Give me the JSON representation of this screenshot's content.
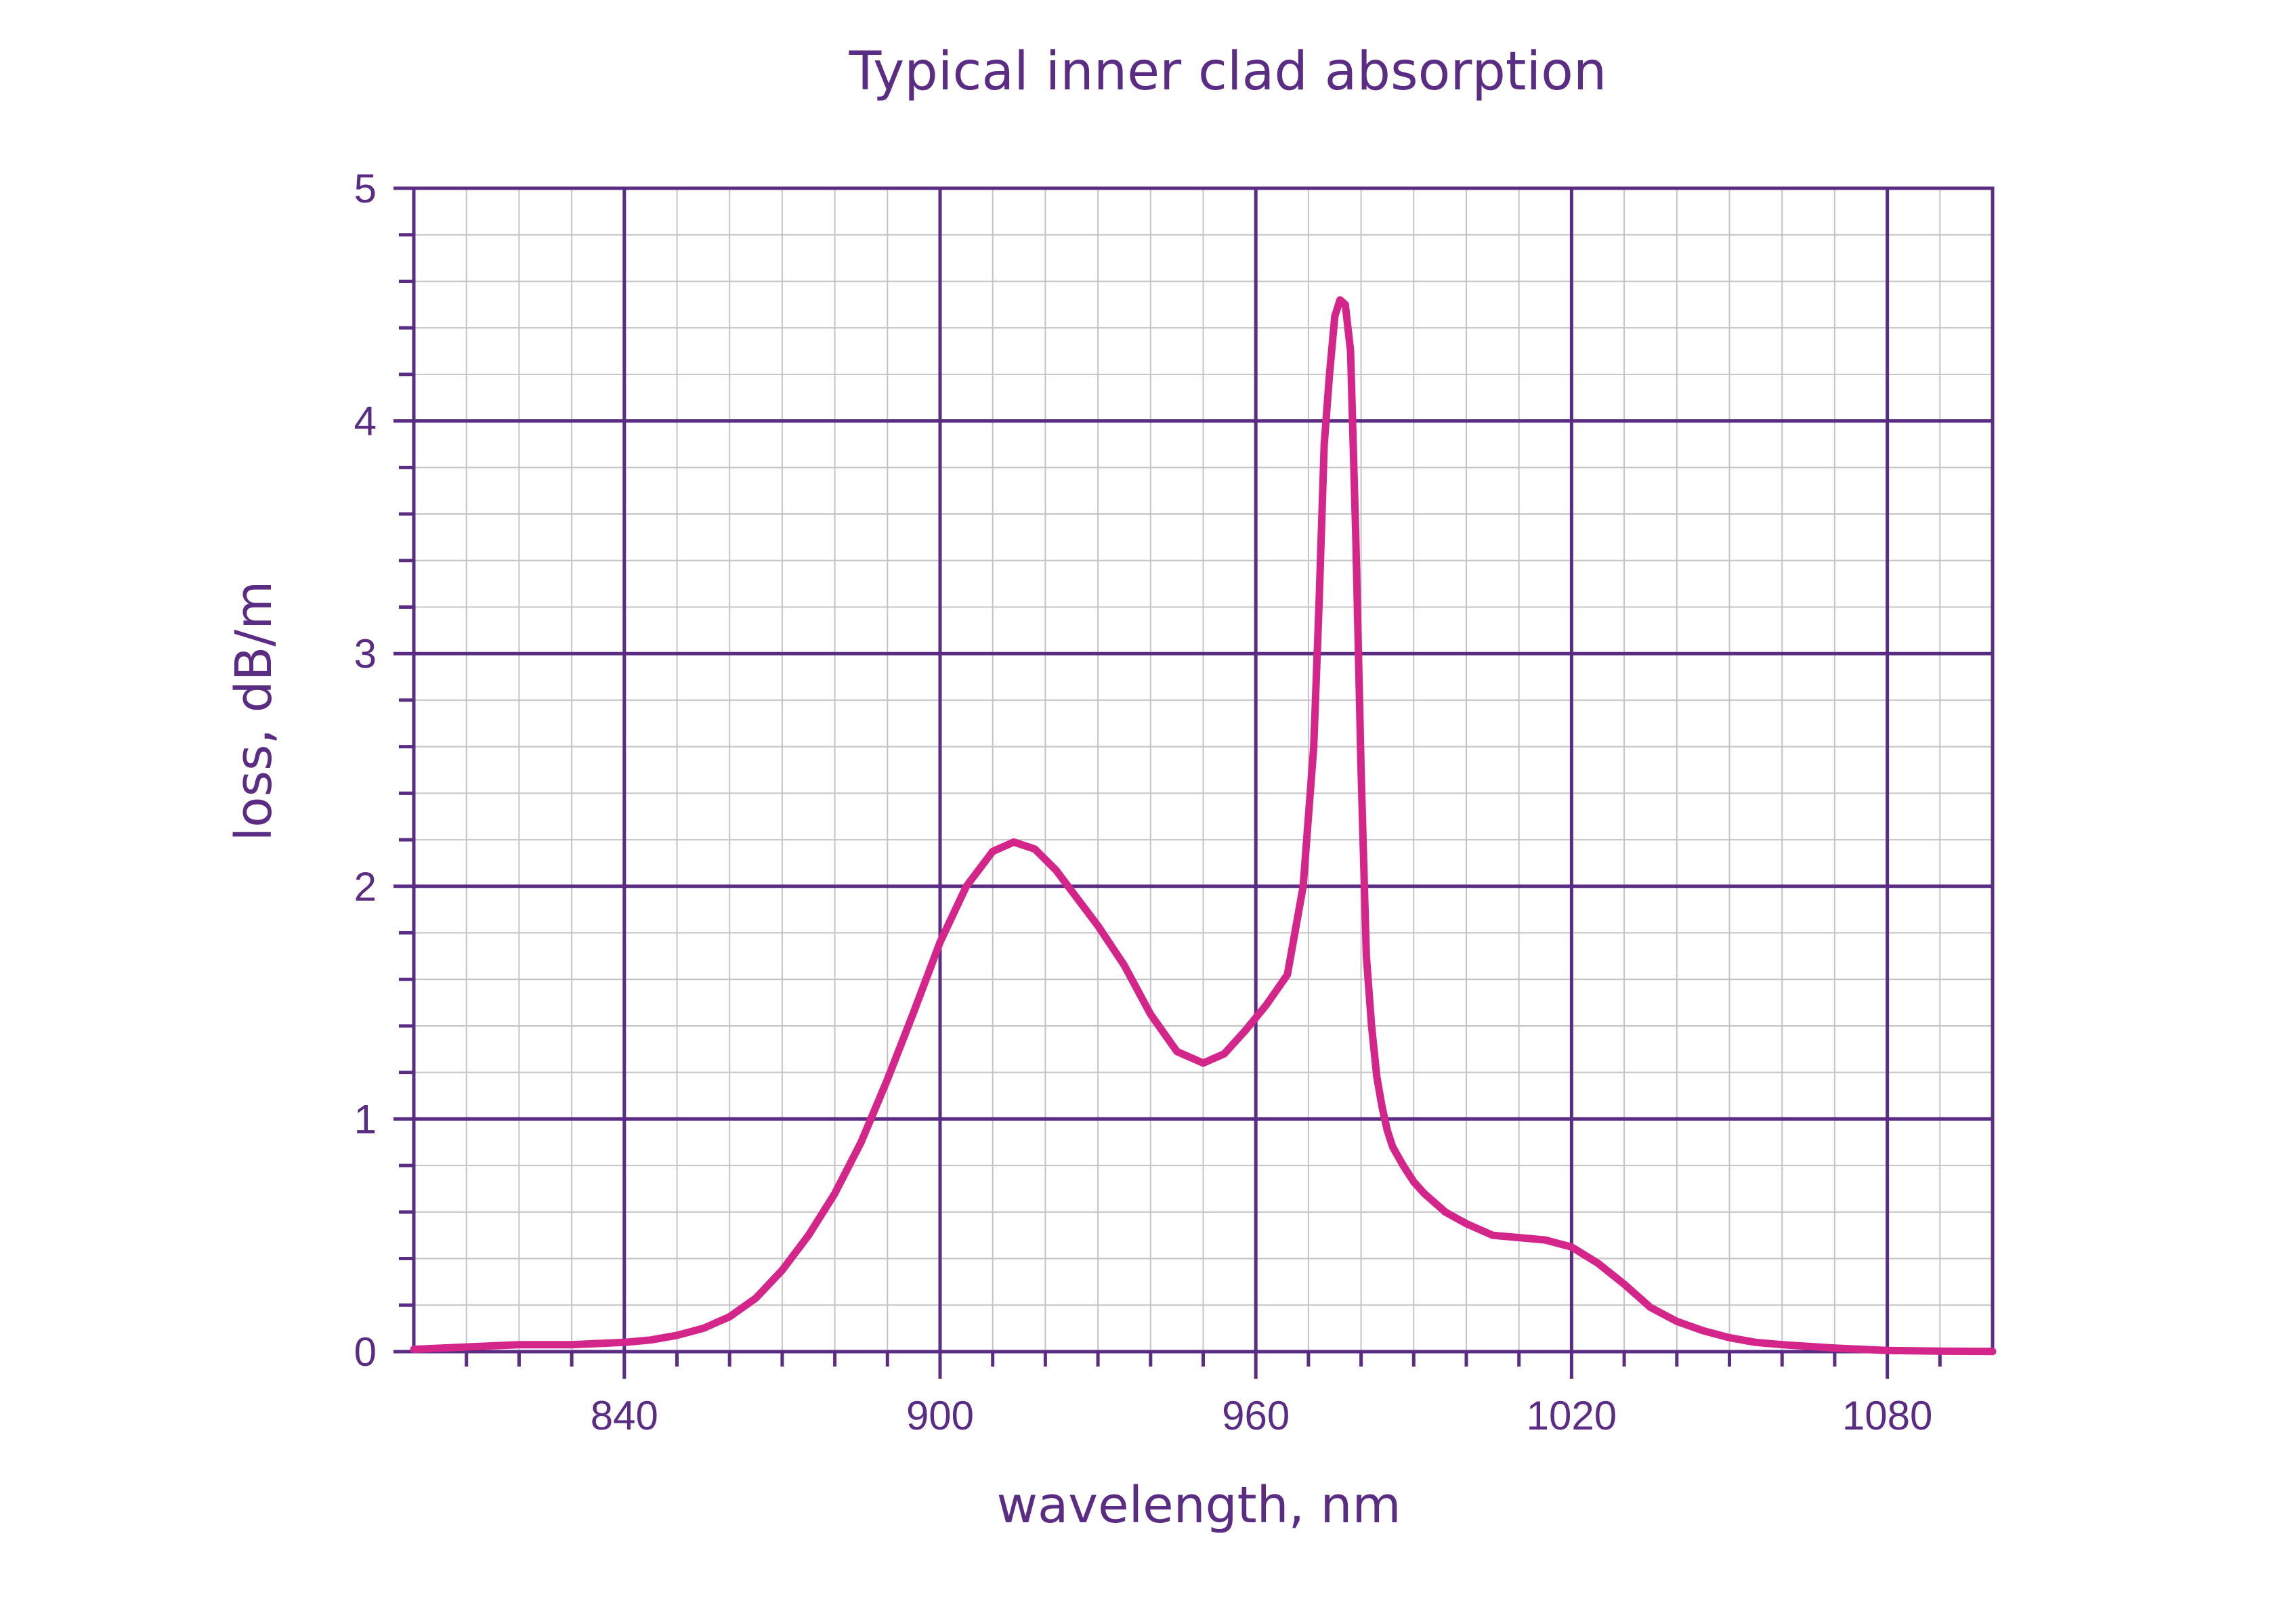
{
  "chart_data": {
    "type": "line",
    "title": "Typical inner clad absorption",
    "xlabel": "wavelength, nm",
    "ylabel": "loss, dB/m",
    "xlim": [
      800,
      1100
    ],
    "ylim": [
      0,
      5
    ],
    "xticks": [
      840,
      900,
      960,
      1020,
      1080
    ],
    "yticks": [
      0,
      1,
      2,
      3,
      4,
      5
    ],
    "grid": true,
    "colors": {
      "axis": "#5b2c83",
      "grid": "#c4c4c4",
      "series": "#d3258a"
    },
    "series": [
      {
        "x": [
          800,
          810,
          820,
          830,
          840,
          845,
          850,
          855,
          860,
          865,
          870,
          875,
          880,
          885,
          890,
          895,
          900,
          905,
          910,
          914,
          918,
          922,
          926,
          930,
          935,
          940,
          945,
          950,
          954,
          958,
          962,
          966,
          969,
          971,
          972,
          973,
          974,
          975,
          976,
          977,
          978,
          979,
          980,
          981,
          982,
          983,
          984,
          985,
          986,
          988,
          990,
          992,
          994,
          996,
          1000,
          1005,
          1010,
          1015,
          1020,
          1025,
          1030,
          1035,
          1040,
          1045,
          1050,
          1055,
          1060,
          1070,
          1080,
          1090,
          1100
        ],
        "y": [
          0.01,
          0.02,
          0.03,
          0.03,
          0.04,
          0.05,
          0.07,
          0.1,
          0.15,
          0.23,
          0.35,
          0.5,
          0.68,
          0.9,
          1.17,
          1.46,
          1.76,
          2.0,
          2.15,
          2.19,
          2.16,
          2.07,
          1.95,
          1.83,
          1.66,
          1.45,
          1.29,
          1.24,
          1.28,
          1.38,
          1.49,
          1.62,
          2.0,
          2.6,
          3.2,
          3.9,
          4.2,
          4.45,
          4.52,
          4.5,
          4.3,
          3.5,
          2.5,
          1.7,
          1.4,
          1.18,
          1.05,
          0.95,
          0.88,
          0.8,
          0.73,
          0.68,
          0.64,
          0.6,
          0.55,
          0.5,
          0.49,
          0.48,
          0.45,
          0.38,
          0.29,
          0.19,
          0.13,
          0.09,
          0.06,
          0.04,
          0.03,
          0.015,
          0.005,
          0.002,
          0.001
        ]
      }
    ]
  }
}
